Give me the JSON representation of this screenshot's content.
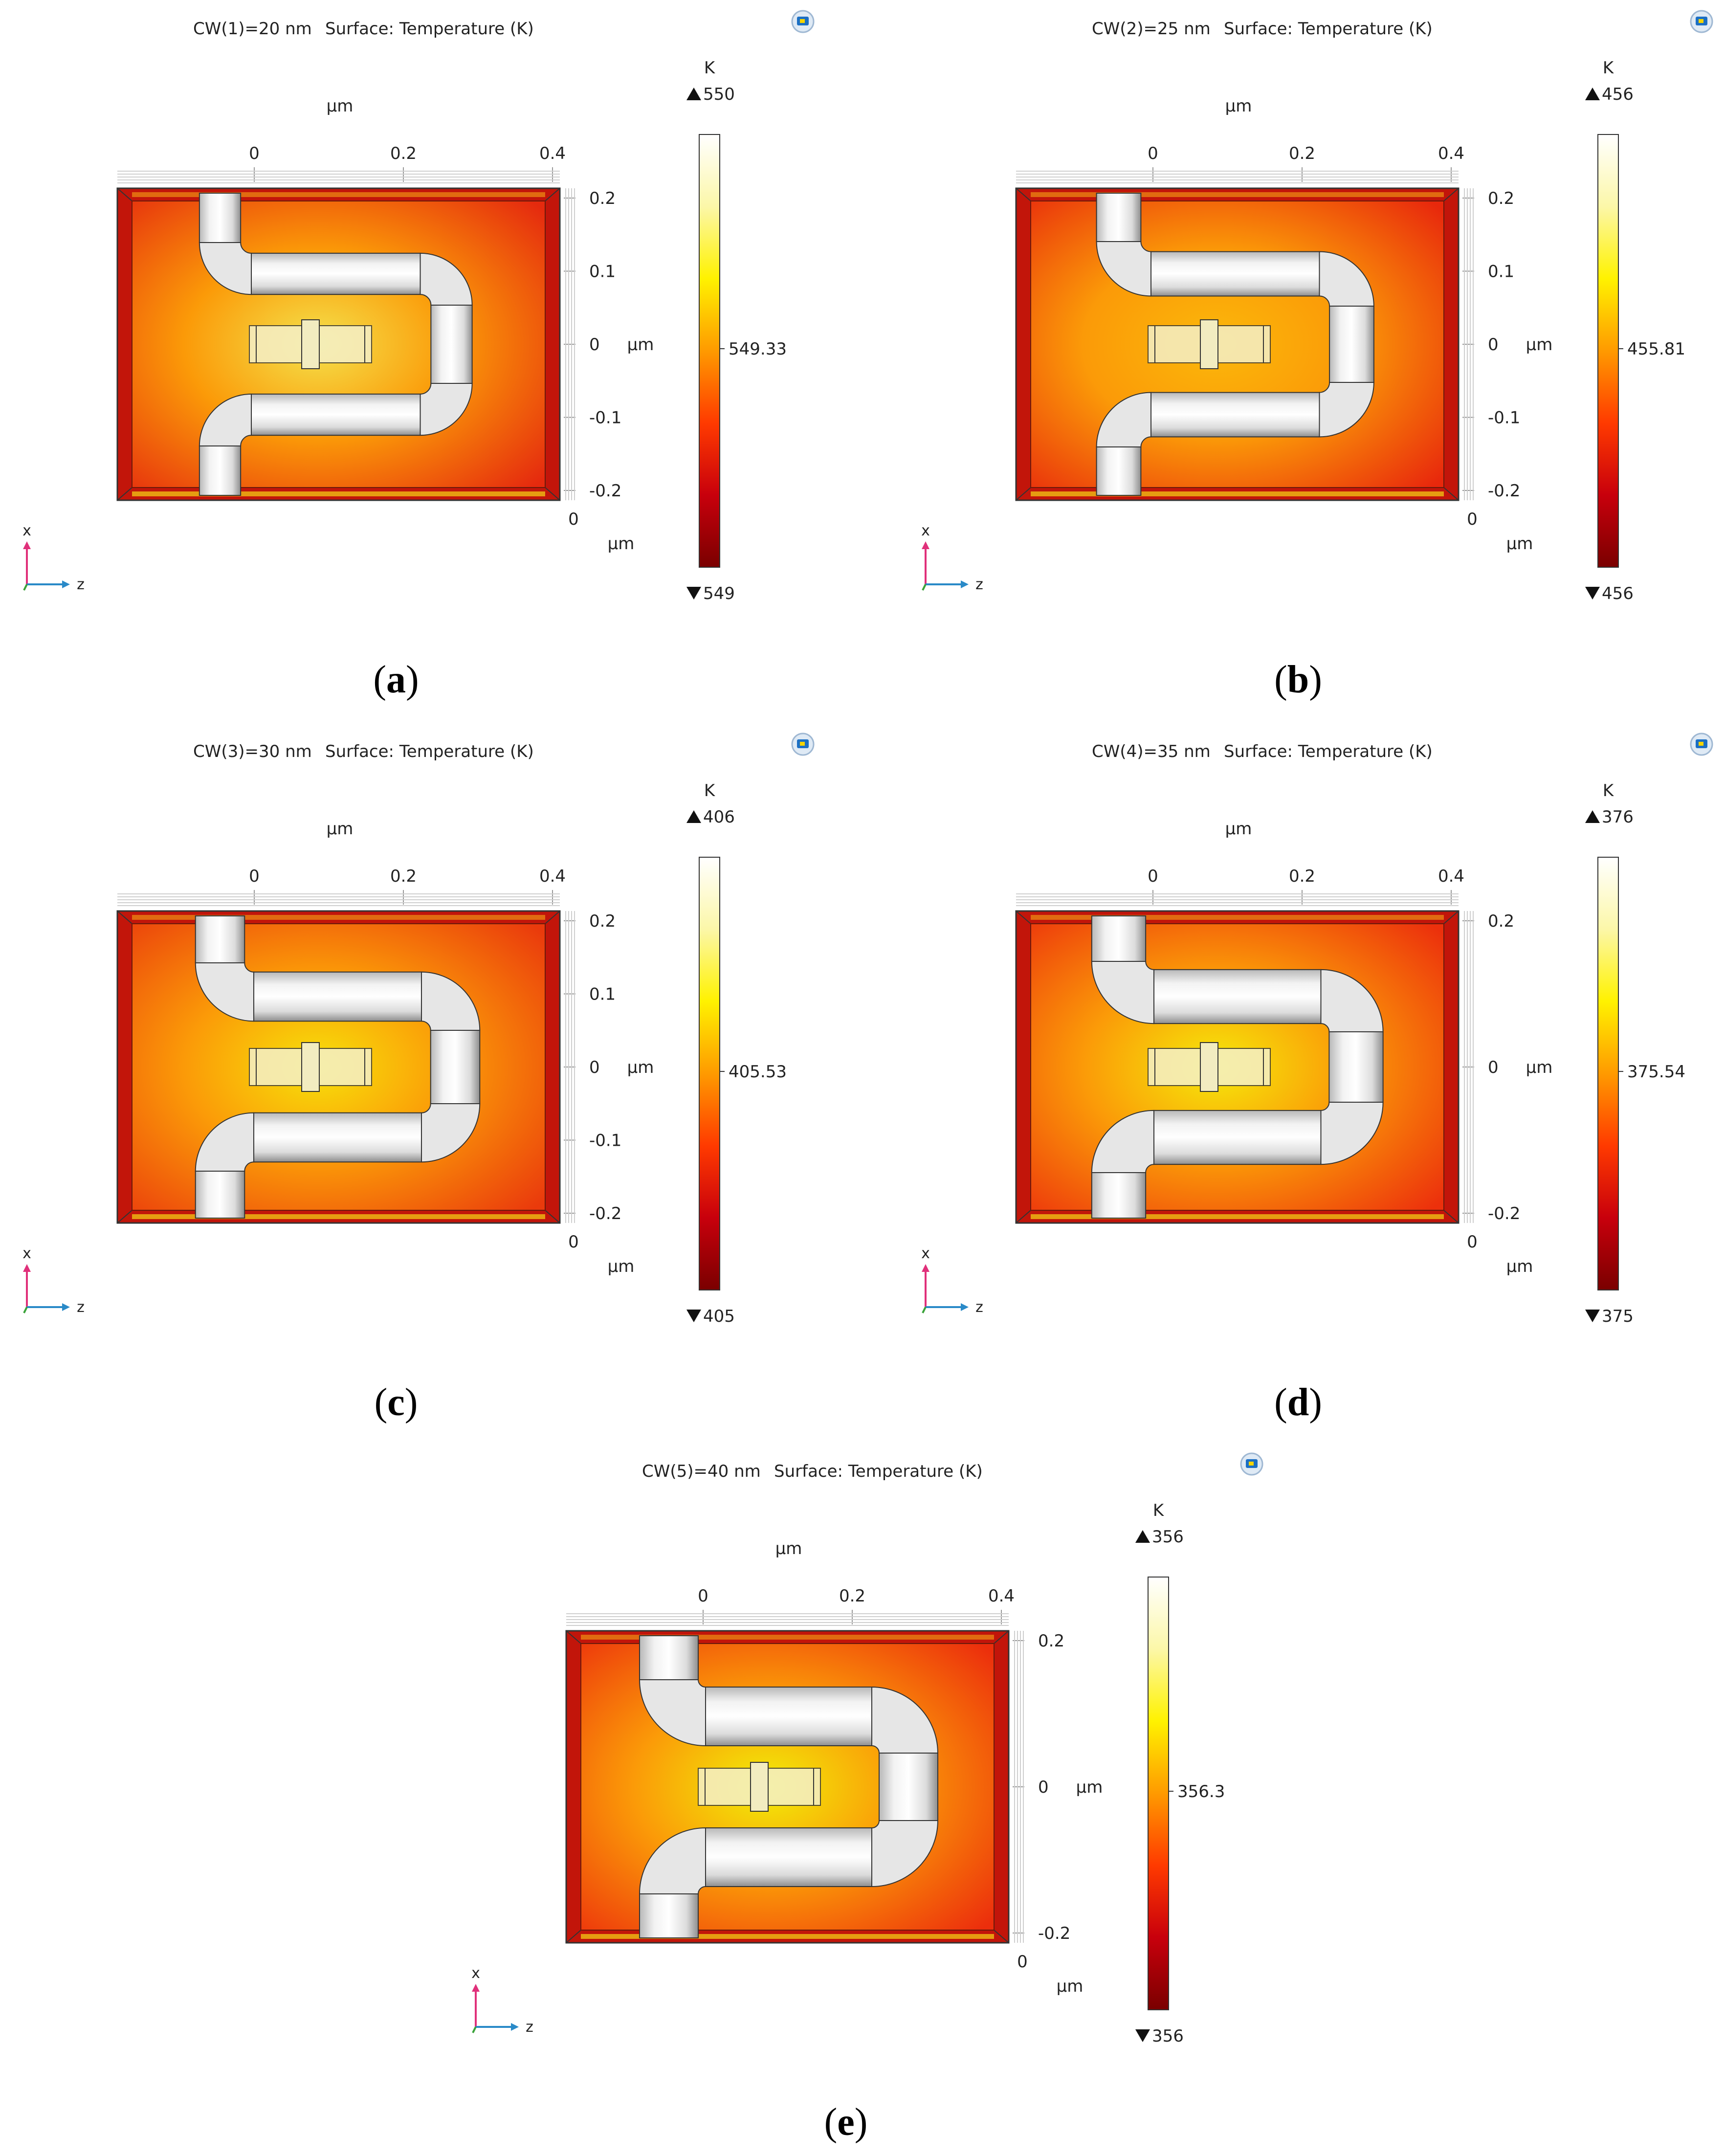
{
  "figure": {
    "panels": [
      {
        "id": "a",
        "caption_letter": "a",
        "param_label": "CW(1)=20 nm",
        "plot_title": "Surface: Temperature (K)",
        "z_axis": {
          "unit": "μm",
          "ticks": [
            "0",
            "0.2",
            "0.4"
          ]
        },
        "x_axis": {
          "unit": "μm",
          "ticks": [
            "0.2",
            "0.1",
            "0",
            "-0.1",
            "-0.2"
          ],
          "corner_tick": "0"
        },
        "colorbar": {
          "unit": "K",
          "max_label": "550",
          "mid_label": "549.33",
          "min_label": "549"
        },
        "triad": {
          "vertical": "x",
          "horizontal": "z",
          "out": "y"
        },
        "wire_width_fraction": 0.45,
        "center_color": "#f4e24c",
        "edge_color": "#e52a0e"
      },
      {
        "id": "b",
        "caption_letter": "b",
        "param_label": "CW(2)=25 nm",
        "plot_title": "Surface: Temperature (K)",
        "z_axis": {
          "unit": "μm",
          "ticks": [
            "0",
            "0.2",
            "0.4"
          ]
        },
        "x_axis": {
          "unit": "μm",
          "ticks": [
            "0.2",
            "0.1",
            "0",
            "-0.1",
            "-0.2"
          ],
          "corner_tick": "0"
        },
        "colorbar": {
          "unit": "K",
          "max_label": "456",
          "mid_label": "455.81",
          "min_label": "456"
        },
        "triad": {
          "vertical": "x",
          "horizontal": "z",
          "out": "y"
        },
        "wire_width_fraction": 0.55,
        "center_color": "#fbb80a",
        "edge_color": "#e8280c"
      },
      {
        "id": "c",
        "caption_letter": "c",
        "param_label": "CW(3)=30 nm",
        "plot_title": "Surface: Temperature (K)",
        "z_axis": {
          "unit": "μm",
          "ticks": [
            "0",
            "0.2",
            "0.4"
          ]
        },
        "x_axis": {
          "unit": "μm",
          "ticks": [
            "0.2",
            "0.1",
            "0",
            "-0.1",
            "-0.2"
          ],
          "corner_tick": "0"
        },
        "colorbar": {
          "unit": "K",
          "max_label": "406",
          "mid_label": "405.53",
          "min_label": "405"
        },
        "triad": {
          "vertical": "x",
          "horizontal": "z",
          "out": "y"
        },
        "wire_width_fraction": 0.7,
        "center_color": "#f7e20a",
        "edge_color": "#ea3a0c"
      },
      {
        "id": "d",
        "caption_letter": "d",
        "param_label": "CW(4)=35 nm",
        "plot_title": "Surface: Temperature (K)",
        "z_axis": {
          "unit": "μm",
          "ticks": [
            "0",
            "0.2",
            "0.4"
          ]
        },
        "x_axis": {
          "unit": "μm",
          "ticks": [
            "0.2",
            "0",
            "-0.2"
          ],
          "corner_tick": "0"
        },
        "colorbar": {
          "unit": "K",
          "max_label": "376",
          "mid_label": "375.54",
          "min_label": "375"
        },
        "triad": {
          "vertical": "x",
          "horizontal": "z",
          "out": "y"
        },
        "wire_width_fraction": 0.85,
        "center_color": "#f5ea0a",
        "edge_color": "#ec300c"
      },
      {
        "id": "e",
        "caption_letter": "e",
        "param_label": "CW(5)=40 nm",
        "plot_title": "Surface: Temperature (K)",
        "z_axis": {
          "unit": "μm",
          "ticks": [
            "0",
            "0.2",
            "0.4"
          ]
        },
        "x_axis": {
          "unit": "μm",
          "ticks": [
            "0.2",
            "0",
            "-0.2"
          ],
          "corner_tick": "0"
        },
        "colorbar": {
          "unit": "K",
          "max_label": "356",
          "mid_label": "356.3",
          "min_label": "356"
        },
        "triad": {
          "vertical": "x",
          "horizontal": "z",
          "out": "y"
        },
        "wire_width_fraction": 1.0,
        "center_color": "#f1ee08",
        "edge_color": "#ec2e0c"
      }
    ],
    "colormap": [
      "#ffffff",
      "#fcf7a8",
      "#fff200",
      "#ff9a00",
      "#ff3a00",
      "#c8000c",
      "#7a0000"
    ]
  }
}
